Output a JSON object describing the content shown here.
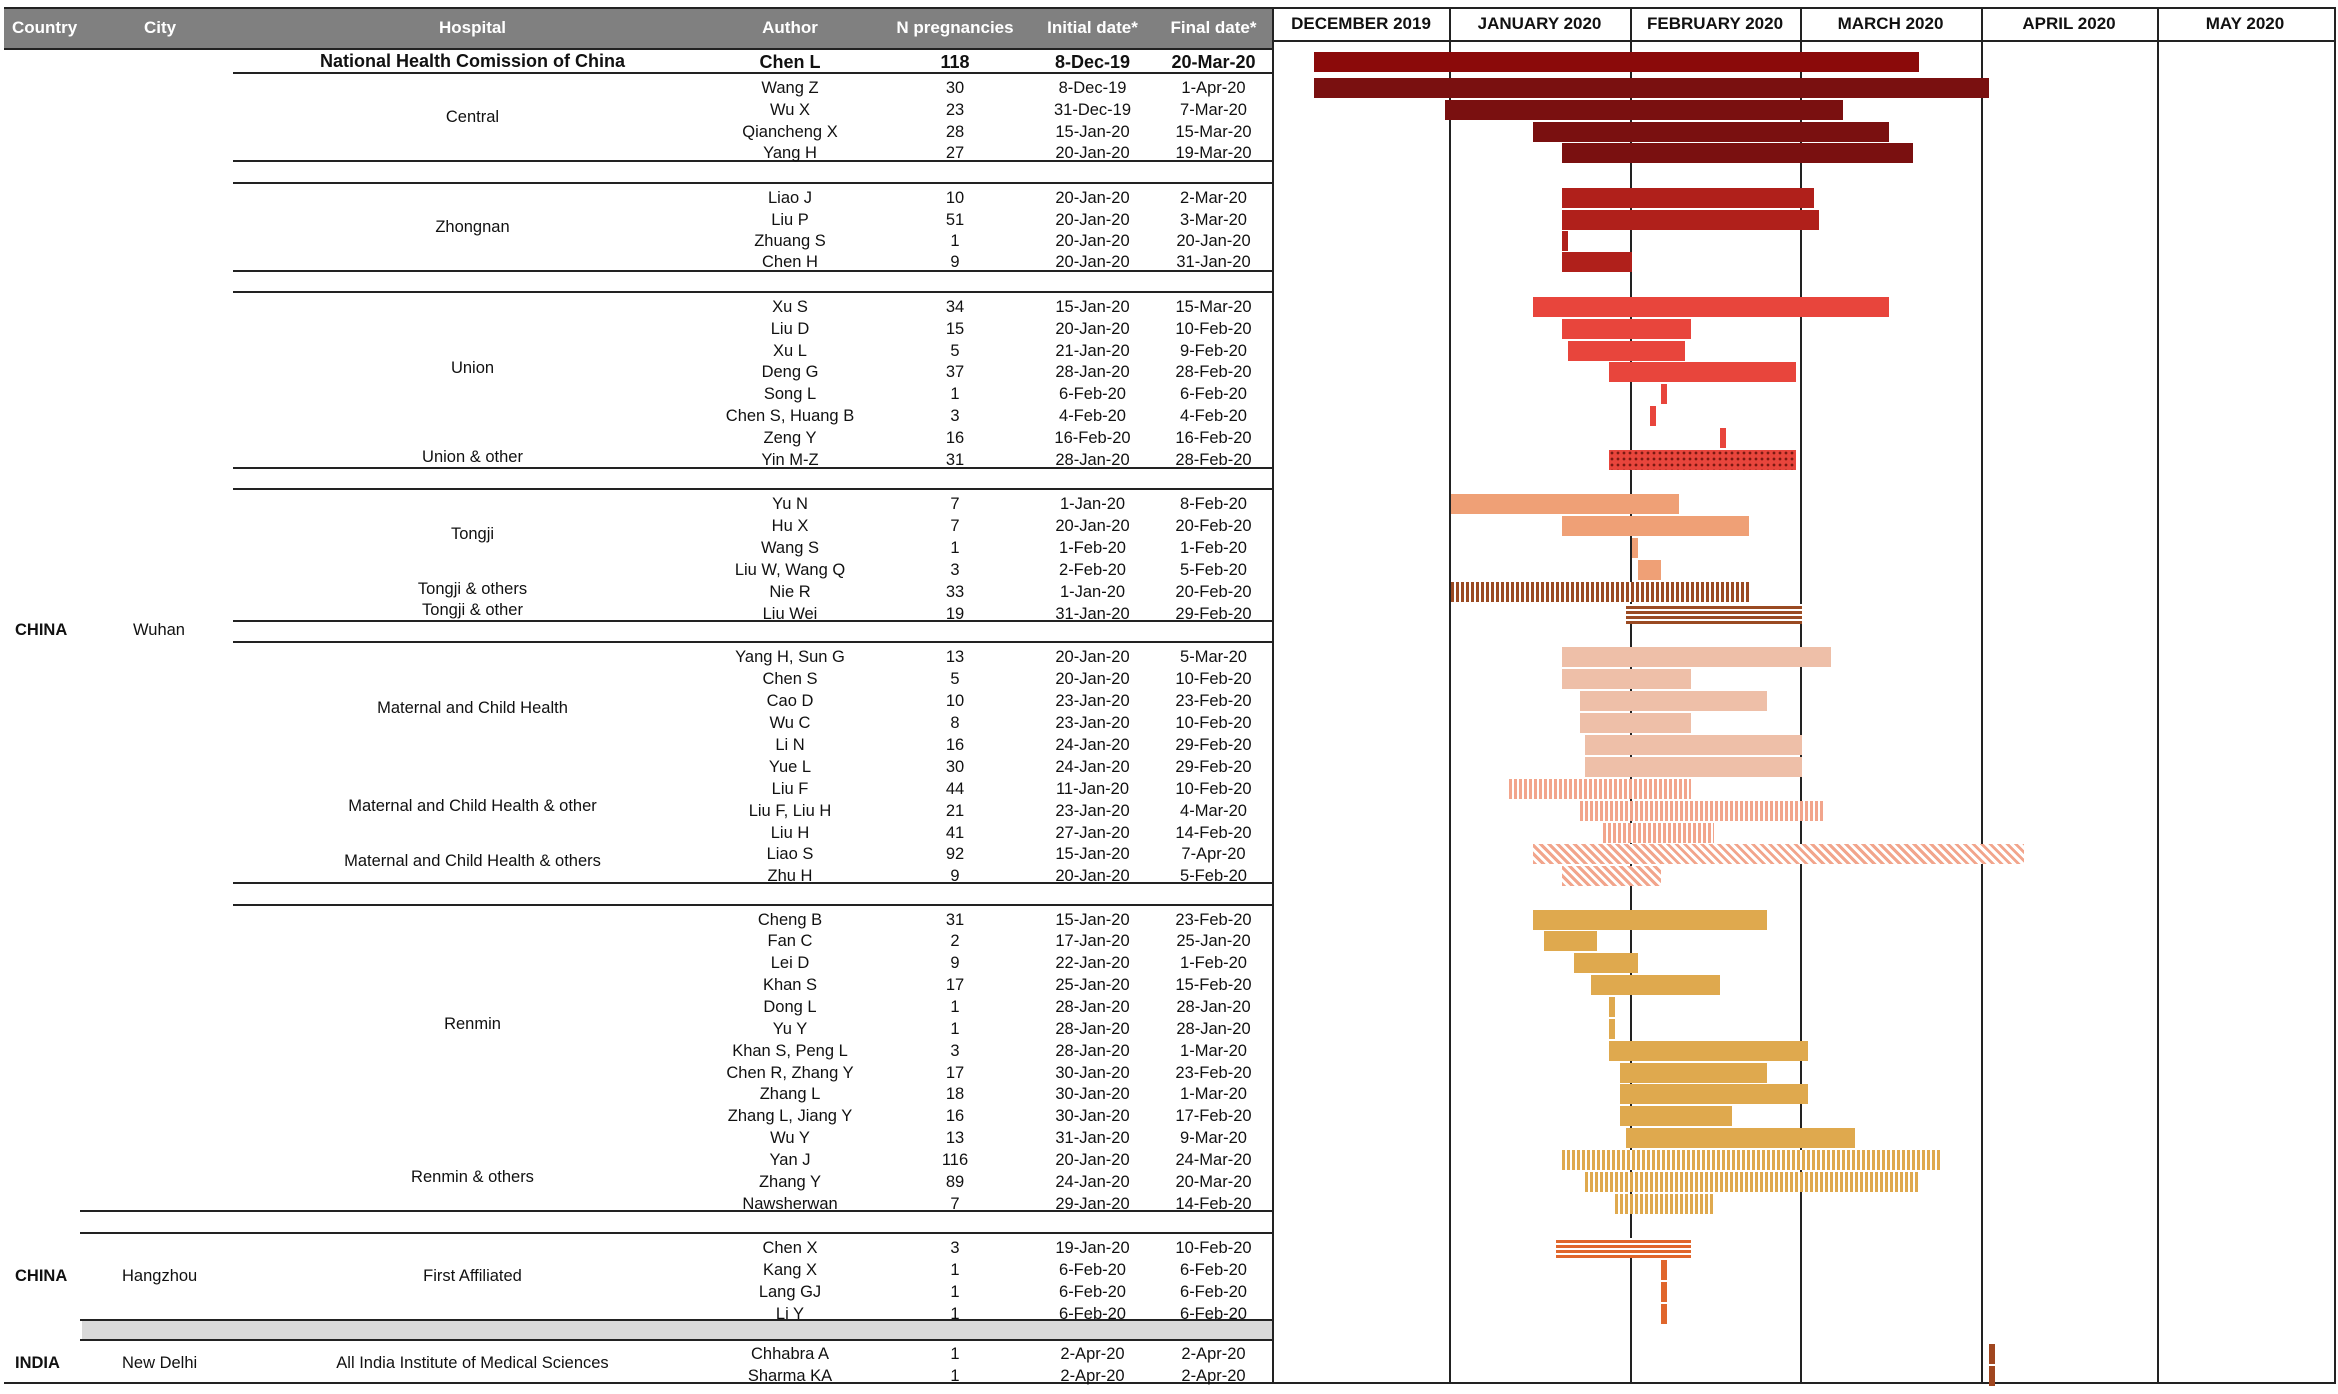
{
  "headers": {
    "country": "Country",
    "city": "City",
    "hospital": "Hospital",
    "author": "Author",
    "n": "N pregnancies",
    "initial": "Initial date*",
    "final": "Final date*"
  },
  "months": [
    "DECEMBER 2019",
    "JANUARY 2020",
    "FEBRUARY 2020",
    "MARCH 2020",
    "APRIL 2020",
    "MAY 2020"
  ],
  "geo": {
    "c1": "CHINA",
    "city1": "Wuhan",
    "c2": "CHINA",
    "city2": "Hangzhou",
    "c3": "INDIA",
    "city3": "New Delhi"
  },
  "groups": [
    "National Health Comission of China",
    "Central",
    "Zhongnan",
    "Union",
    "Union & other",
    "Tongji",
    "Tongji & others",
    "Tongji & other",
    "Maternal and Child Health",
    "Maternal and Child Health & other",
    "Maternal and Child Health & others",
    "Renmin",
    "Renmin & others",
    "First Affiliated",
    "All India Institute of Medical Sciences"
  ],
  "colors": {
    "national": "#8b0a0a",
    "central": "#7a1010",
    "zhongnan": "#b0201b",
    "union": "#e8453c",
    "tongji": "#efa076",
    "mch": "#eebfa8",
    "mch_hatch": "#f2a58c",
    "renmin": "#dfa94e",
    "hangzhou": "#e0662c",
    "india": "#a0461f",
    "header_bg": "#808080"
  },
  "chart_data": {
    "type": "gantt",
    "x_axis": "date",
    "xlim": [
      "2019-12-01",
      "2020-05-31"
    ],
    "month_ticks": [
      "DECEMBER 2019",
      "JANUARY 2020",
      "FEBRUARY 2020",
      "MARCH 2020",
      "APRIL 2020",
      "MAY 2020"
    ],
    "columns": [
      "Author",
      "N pregnancies",
      "Initial date*",
      "Final date*"
    ],
    "rows": [
      {
        "author": "Chen L",
        "n": "118",
        "initial": "8-Dec-19",
        "final": "20-Mar-20",
        "start": "2019-12-08",
        "end": "2020-03-20",
        "color": "#8b0a0a",
        "pattern": "solid"
      },
      {
        "author": "Wang Z",
        "n": "30",
        "initial": "8-Dec-19",
        "final": "1-Apr-20",
        "start": "2019-12-08",
        "end": "2020-04-01",
        "color": "#7a1010",
        "pattern": "solid"
      },
      {
        "author": "Wu X",
        "n": "23",
        "initial": "31-Dec-19",
        "final": "7-Mar-20",
        "start": "2019-12-31",
        "end": "2020-03-07",
        "color": "#7a1010",
        "pattern": "solid"
      },
      {
        "author": "Qiancheng X",
        "n": "28",
        "initial": "15-Jan-20",
        "final": "15-Mar-20",
        "start": "2020-01-15",
        "end": "2020-03-15",
        "color": "#7a1010",
        "pattern": "solid"
      },
      {
        "author": "Yang H",
        "n": "27",
        "initial": "20-Jan-20",
        "final": "19-Mar-20",
        "start": "2020-01-20",
        "end": "2020-03-19",
        "color": "#7a1010",
        "pattern": "solid"
      },
      {
        "author": "Liao J",
        "n": "10",
        "initial": "20-Jan-20",
        "final": "2-Mar-20",
        "start": "2020-01-20",
        "end": "2020-03-02",
        "color": "#b0201b",
        "pattern": "solid"
      },
      {
        "author": "Liu P",
        "n": "51",
        "initial": "20-Jan-20",
        "final": "3-Mar-20",
        "start": "2020-01-20",
        "end": "2020-03-03",
        "color": "#b0201b",
        "pattern": "solid"
      },
      {
        "author": "Zhuang S",
        "n": "1",
        "initial": "20-Jan-20",
        "final": "20-Jan-20",
        "start": "2020-01-20",
        "end": "2020-01-20",
        "color": "#b0201b",
        "pattern": "solid"
      },
      {
        "author": "Chen H",
        "n": "9",
        "initial": "20-Jan-20",
        "final": "31-Jan-20",
        "start": "2020-01-20",
        "end": "2020-01-31",
        "color": "#b0201b",
        "pattern": "solid"
      },
      {
        "author": "Xu S",
        "n": "34",
        "initial": "15-Jan-20",
        "final": "15-Mar-20",
        "start": "2020-01-15",
        "end": "2020-03-15",
        "color": "#e8453c",
        "pattern": "solid"
      },
      {
        "author": "Liu D",
        "n": "15",
        "initial": "20-Jan-20",
        "final": "10-Feb-20",
        "start": "2020-01-20",
        "end": "2020-02-10",
        "color": "#e8453c",
        "pattern": "solid"
      },
      {
        "author": "Xu L",
        "n": "5",
        "initial": "21-Jan-20",
        "final": "9-Feb-20",
        "start": "2020-01-21",
        "end": "2020-02-09",
        "color": "#e8453c",
        "pattern": "solid"
      },
      {
        "author": "Deng G",
        "n": "37",
        "initial": "28-Jan-20",
        "final": "28-Feb-20",
        "start": "2020-01-28",
        "end": "2020-02-28",
        "color": "#e8453c",
        "pattern": "solid"
      },
      {
        "author": "Song L",
        "n": "1",
        "initial": "6-Feb-20",
        "final": "6-Feb-20",
        "start": "2020-02-06",
        "end": "2020-02-06",
        "color": "#e8453c",
        "pattern": "solid"
      },
      {
        "author": "Chen S, Huang B",
        "n": "3",
        "initial": "4-Feb-20",
        "final": "4-Feb-20",
        "start": "2020-02-04",
        "end": "2020-02-04",
        "color": "#e8453c",
        "pattern": "solid"
      },
      {
        "author": "Zeng Y",
        "n": "16",
        "initial": "16-Feb-20",
        "final": "16-Feb-20",
        "start": "2020-02-16",
        "end": "2020-02-16",
        "color": "#e8453c",
        "pattern": "solid"
      },
      {
        "author": "Yin M-Z",
        "n": "31",
        "initial": "28-Jan-20",
        "final": "28-Feb-20",
        "start": "2020-01-28",
        "end": "2020-02-28",
        "color": "#e8453c",
        "pattern": "dots"
      },
      {
        "author": "Yu N",
        "n": "7",
        "initial": "1-Jan-20",
        "final": "8-Feb-20",
        "start": "2020-01-01",
        "end": "2020-02-08",
        "color": "#efa076",
        "pattern": "solid"
      },
      {
        "author": "Hu X",
        "n": "7",
        "initial": "20-Jan-20",
        "final": "20-Feb-20",
        "start": "2020-01-20",
        "end": "2020-02-20",
        "color": "#efa076",
        "pattern": "solid"
      },
      {
        "author": "Wang S",
        "n": "1",
        "initial": "1-Feb-20",
        "final": "1-Feb-20",
        "start": "2020-02-01",
        "end": "2020-02-01",
        "color": "#efa076",
        "pattern": "solid"
      },
      {
        "author": "Liu W, Wang Q",
        "n": "3",
        "initial": "2-Feb-20",
        "final": "5-Feb-20",
        "start": "2020-02-02",
        "end": "2020-02-05",
        "color": "#efa076",
        "pattern": "solid"
      },
      {
        "author": "Nie R",
        "n": "33",
        "initial": "1-Jan-20",
        "final": "20-Feb-20",
        "start": "2020-01-01",
        "end": "2020-02-20",
        "color": "#9a4a22",
        "pattern": "vstripe"
      },
      {
        "author": "Liu Wei",
        "n": "19",
        "initial": "31-Jan-20",
        "final": "29-Feb-20",
        "start": "2020-01-31",
        "end": "2020-02-29",
        "color": "#9a4a22",
        "pattern": "hstripe"
      },
      {
        "author": "Yang H, Sun G",
        "n": "13",
        "initial": "20-Jan-20",
        "final": "5-Mar-20",
        "start": "2020-01-20",
        "end": "2020-03-05",
        "color": "#eebfa8",
        "pattern": "solid"
      },
      {
        "author": "Chen S",
        "n": "5",
        "initial": "20-Jan-20",
        "final": "10-Feb-20",
        "start": "2020-01-20",
        "end": "2020-02-10",
        "color": "#eebfa8",
        "pattern": "solid"
      },
      {
        "author": "Cao D",
        "n": "10",
        "initial": "23-Jan-20",
        "final": "23-Feb-20",
        "start": "2020-01-23",
        "end": "2020-02-23",
        "color": "#eebfa8",
        "pattern": "solid"
      },
      {
        "author": "Wu C",
        "n": "8",
        "initial": "23-Jan-20",
        "final": "10-Feb-20",
        "start": "2020-01-23",
        "end": "2020-02-10",
        "color": "#eebfa8",
        "pattern": "solid"
      },
      {
        "author": "Li N",
        "n": "16",
        "initial": "24-Jan-20",
        "final": "29-Feb-20",
        "start": "2020-01-24",
        "end": "2020-02-29",
        "color": "#eebfa8",
        "pattern": "solid"
      },
      {
        "author": "Yue L",
        "n": "30",
        "initial": "24-Jan-20",
        "final": "29-Feb-20",
        "start": "2020-01-24",
        "end": "2020-02-29",
        "color": "#eebfa8",
        "pattern": "solid"
      },
      {
        "author": "Liu F",
        "n": "44",
        "initial": "11-Jan-20",
        "final": "10-Feb-20",
        "start": "2020-01-11",
        "end": "2020-02-10",
        "color": "#f2a58c",
        "pattern": "vstripe"
      },
      {
        "author": "Liu F, Liu H",
        "n": "21",
        "initial": "23-Jan-20",
        "final": "4-Mar-20",
        "start": "2020-01-23",
        "end": "2020-03-04",
        "color": "#f2a58c",
        "pattern": "vstripe"
      },
      {
        "author": "Liu H",
        "n": "41",
        "initial": "27-Jan-20",
        "final": "14-Feb-20",
        "start": "2020-01-27",
        "end": "2020-02-14",
        "color": "#f2a58c",
        "pattern": "vstripe"
      },
      {
        "author": "Liao S",
        "n": "92",
        "initial": "15-Jan-20",
        "final": "7-Apr-20",
        "start": "2020-01-15",
        "end": "2020-04-07",
        "color": "#f2a58c",
        "pattern": "diag"
      },
      {
        "author": "Zhu H",
        "n": "9",
        "initial": "20-Jan-20",
        "final": "5-Feb-20",
        "start": "2020-01-20",
        "end": "2020-02-05",
        "color": "#f2a58c",
        "pattern": "diag"
      },
      {
        "author": "Cheng B",
        "n": "31",
        "initial": "15-Jan-20",
        "final": "23-Feb-20",
        "start": "2020-01-15",
        "end": "2020-02-23",
        "color": "#dfa94e",
        "pattern": "solid"
      },
      {
        "author": "Fan C",
        "n": "2",
        "initial": "17-Jan-20",
        "final": "25-Jan-20",
        "start": "2020-01-17",
        "end": "2020-01-25",
        "color": "#dfa94e",
        "pattern": "solid"
      },
      {
        "author": "Lei D",
        "n": "9",
        "initial": "22-Jan-20",
        "final": "1-Feb-20",
        "start": "2020-01-22",
        "end": "2020-02-01",
        "color": "#dfa94e",
        "pattern": "solid"
      },
      {
        "author": "Khan S",
        "n": "17",
        "initial": "25-Jan-20",
        "final": "15-Feb-20",
        "start": "2020-01-25",
        "end": "2020-02-15",
        "color": "#dfa94e",
        "pattern": "solid"
      },
      {
        "author": "Dong L",
        "n": "1",
        "initial": "28-Jan-20",
        "final": "28-Jan-20",
        "start": "2020-01-28",
        "end": "2020-01-28",
        "color": "#dfa94e",
        "pattern": "solid"
      },
      {
        "author": "Yu Y",
        "n": "1",
        "initial": "28-Jan-20",
        "final": "28-Jan-20",
        "start": "2020-01-28",
        "end": "2020-01-28",
        "color": "#dfa94e",
        "pattern": "solid"
      },
      {
        "author": "Khan S, Peng L",
        "n": "3",
        "initial": "28-Jan-20",
        "final": "1-Mar-20",
        "start": "2020-01-28",
        "end": "2020-03-01",
        "color": "#dfa94e",
        "pattern": "solid"
      },
      {
        "author": "Chen R, Zhang Y",
        "n": "17",
        "initial": "30-Jan-20",
        "final": "23-Feb-20",
        "start": "2020-01-30",
        "end": "2020-02-23",
        "color": "#dfa94e",
        "pattern": "solid"
      },
      {
        "author": "Zhang L",
        "n": "18",
        "initial": "30-Jan-20",
        "final": "1-Mar-20",
        "start": "2020-01-30",
        "end": "2020-03-01",
        "color": "#dfa94e",
        "pattern": "solid"
      },
      {
        "author": "Zhang L, Jiang Y",
        "n": "16",
        "initial": "30-Jan-20",
        "final": "17-Feb-20",
        "start": "2020-01-30",
        "end": "2020-02-17",
        "color": "#dfa94e",
        "pattern": "solid"
      },
      {
        "author": "Wu Y",
        "n": "13",
        "initial": "31-Jan-20",
        "final": "9-Mar-20",
        "start": "2020-01-31",
        "end": "2020-03-09",
        "color": "#dfa94e",
        "pattern": "solid"
      },
      {
        "author": "Yan J",
        "n": "116",
        "initial": "20-Jan-20",
        "final": "24-Mar-20",
        "start": "2020-01-20",
        "end": "2020-03-24",
        "color": "#dfa94e",
        "pattern": "vstripe"
      },
      {
        "author": "Zhang Y",
        "n": "89",
        "initial": "24-Jan-20",
        "final": "20-Mar-20",
        "start": "2020-01-24",
        "end": "2020-03-20",
        "color": "#dfa94e",
        "pattern": "vstripe"
      },
      {
        "author": "Nawsherwan",
        "n": "7",
        "initial": "29-Jan-20",
        "final": "14-Feb-20",
        "start": "2020-01-29",
        "end": "2020-02-14",
        "color": "#dfa94e",
        "pattern": "vstripe"
      },
      {
        "author": "Chen X",
        "n": "3",
        "initial": "19-Jan-20",
        "final": "10-Feb-20",
        "start": "2020-01-19",
        "end": "2020-02-10",
        "color": "#e0662c",
        "pattern": "hstripe"
      },
      {
        "author": "Kang X",
        "n": "1",
        "initial": "6-Feb-20",
        "final": "6-Feb-20",
        "start": "2020-02-06",
        "end": "2020-02-06",
        "color": "#e0662c",
        "pattern": "solid"
      },
      {
        "author": "Lang GJ",
        "n": "1",
        "initial": "6-Feb-20",
        "final": "6-Feb-20",
        "start": "2020-02-06",
        "end": "2020-02-06",
        "color": "#e0662c",
        "pattern": "solid"
      },
      {
        "author": "Li Y",
        "n": "1",
        "initial": "6-Feb-20",
        "final": "6-Feb-20",
        "start": "2020-02-06",
        "end": "2020-02-06",
        "color": "#e0662c",
        "pattern": "solid"
      },
      {
        "author": "Chhabra A",
        "n": "1",
        "initial": "2-Apr-20",
        "final": "2-Apr-20",
        "start": "2020-04-02",
        "end": "2020-04-02",
        "color": "#a0461f",
        "pattern": "solid"
      },
      {
        "author": "Sharma KA",
        "n": "1",
        "initial": "2-Apr-20",
        "final": "2-Apr-20",
        "start": "2020-04-02",
        "end": "2020-04-02",
        "color": "#a0461f",
        "pattern": "solid"
      }
    ]
  }
}
